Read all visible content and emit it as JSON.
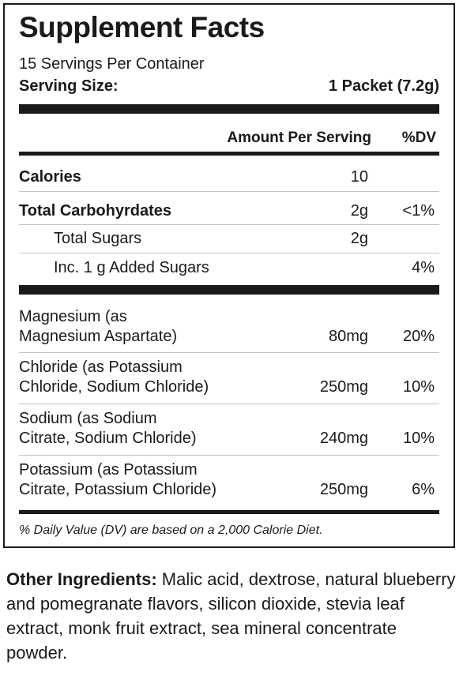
{
  "panel": {
    "title": "Supplement Facts",
    "servings_per_container": "15 Servings Per Container",
    "serving_size_label": "Serving Size:",
    "serving_size_value": "1 Packet (7.2g)",
    "header_amount": "Amount Per Serving",
    "header_dv": "%DV",
    "rows": [
      {
        "name": "Calories",
        "amount": "10",
        "dv": ""
      },
      {
        "name": "Total Carbohyrdates",
        "amount": "2g",
        "dv": "<1%"
      },
      {
        "name": "Total Sugars",
        "amount": "2g",
        "dv": ""
      },
      {
        "name": "Inc. 1 g Added Sugars",
        "amount": "",
        "dv": "4%"
      }
    ],
    "minerals": [
      {
        "line1": "Magnesium (as",
        "line2": "Magnesium Aspartate)",
        "amount": "80mg",
        "dv": "20%"
      },
      {
        "line1": "Chloride (as Potassium",
        "line2": "Chloride, Sodium Chloride)",
        "amount": "250mg",
        "dv": "10%"
      },
      {
        "line1": "Sodium (as Sodium",
        "line2": "Citrate, Sodium Chloride)",
        "amount": "240mg",
        "dv": "10%"
      },
      {
        "line1": "Potassium (as Potassium",
        "line2": "Citrate, Potassium Chloride)",
        "amount": "250mg",
        "dv": "6%"
      }
    ],
    "footnote": "% Daily Value (DV) are based on a 2,000 Calorie Diet."
  },
  "other_ingredients": {
    "label": "Other Ingredients:",
    "text": " Malic acid, dextrose, natural blueberry and pomegranate flavors, silicon dioxide, stevia leaf extract, monk fruit extract, sea mineral concentrate powder."
  }
}
